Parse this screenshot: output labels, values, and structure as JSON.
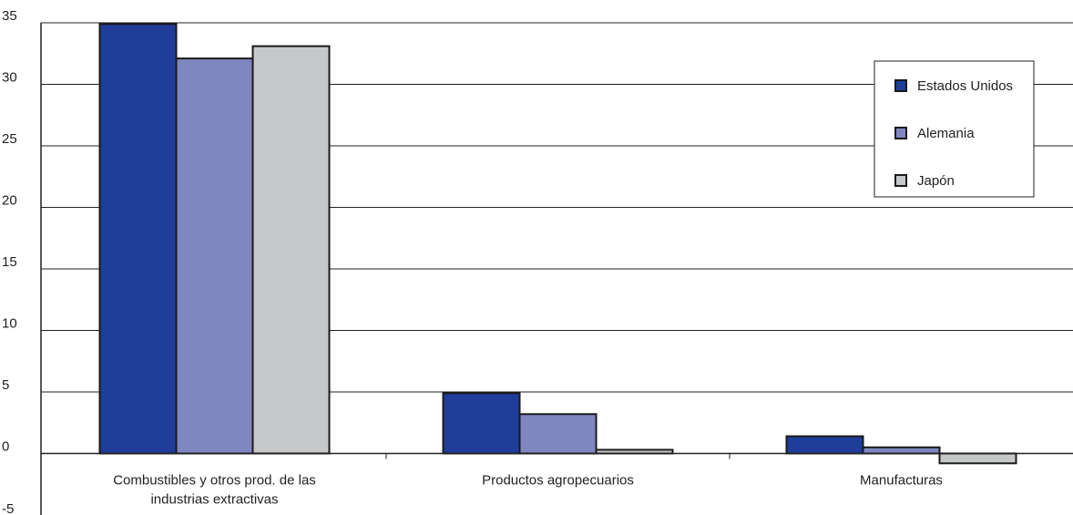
{
  "chart_data": {
    "type": "bar",
    "title": "",
    "xlabel": "",
    "ylabel": "",
    "categories": [
      [
        "Combustibles y otros prod. de las",
        "industrias extractivas"
      ],
      [
        "Productos agropecuarios"
      ],
      [
        "Manufacturas"
      ]
    ],
    "series": [
      {
        "name": "Estados Unidos",
        "color": "#1f3d99",
        "values": [
          34.9,
          4.9,
          1.4
        ]
      },
      {
        "name": "Alemania",
        "color": "#8087c0",
        "values": [
          32.1,
          3.2,
          0.5
        ]
      },
      {
        "name": "Japón",
        "color": "#c6c7c9",
        "values": [
          33.1,
          0.3,
          -0.8
        ]
      }
    ],
    "ylim": [
      -5,
      35
    ],
    "yticks": [
      -5,
      0,
      5,
      10,
      15,
      20,
      25,
      30,
      35
    ],
    "grid": true,
    "legend_position": "top-right"
  }
}
